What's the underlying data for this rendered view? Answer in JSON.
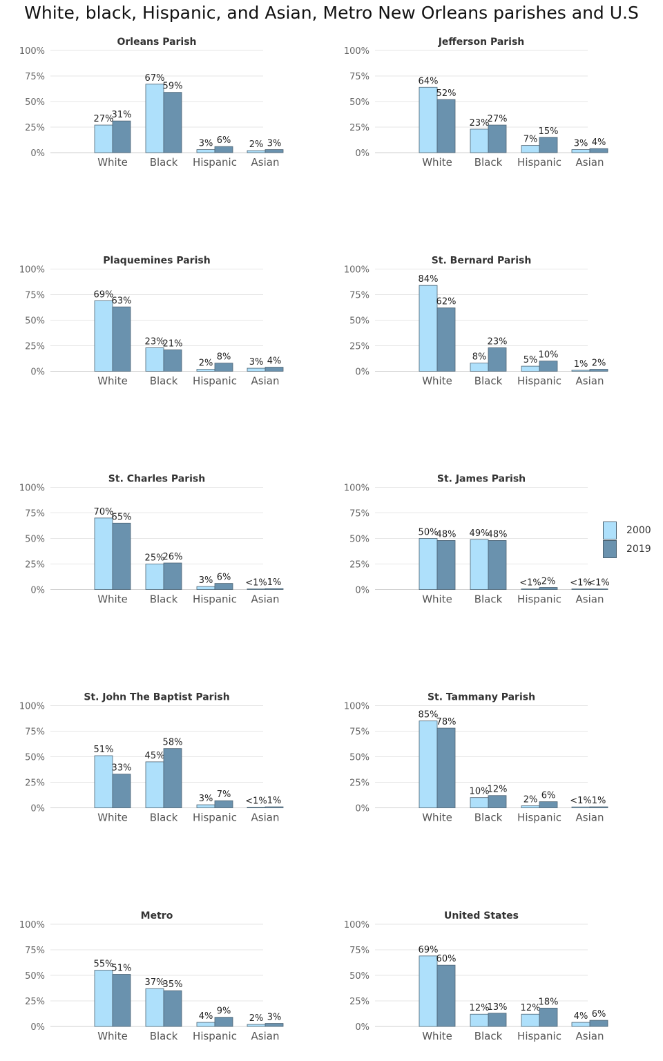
{
  "title": "White, black, Hispanic, and Asian, Metro New Orleans parishes and U.S",
  "legend": [
    {
      "label": "2000",
      "color": "#aee0fb"
    },
    {
      "label": "2019",
      "color": "#6a92ae"
    }
  ],
  "y_ticks": [
    "0%",
    "25%",
    "50%",
    "75%",
    "100%"
  ],
  "chart_data": [
    {
      "type": "bar",
      "title": "Orleans Parish",
      "categories": [
        "White",
        "Black",
        "Hispanic",
        "Asian"
      ],
      "ylim": [
        0,
        100
      ],
      "series": [
        {
          "name": "2000",
          "values": [
            27,
            67,
            3,
            2
          ],
          "labels": [
            "27%",
            "67%",
            "3%",
            "2%"
          ]
        },
        {
          "name": "2019",
          "values": [
            31,
            59,
            6,
            3
          ],
          "labels": [
            "31%",
            "59%",
            "6%",
            "3%"
          ]
        }
      ]
    },
    {
      "type": "bar",
      "title": "Jefferson Parish",
      "categories": [
        "White",
        "Black",
        "Hispanic",
        "Asian"
      ],
      "ylim": [
        0,
        100
      ],
      "series": [
        {
          "name": "2000",
          "values": [
            64,
            23,
            7,
            3
          ],
          "labels": [
            "64%",
            "23%",
            "7%",
            "3%"
          ]
        },
        {
          "name": "2019",
          "values": [
            52,
            27,
            15,
            4
          ],
          "labels": [
            "52%",
            "27%",
            "15%",
            "4%"
          ]
        }
      ]
    },
    {
      "type": "bar",
      "title": "Plaquemines Parish",
      "categories": [
        "White",
        "Black",
        "Hispanic",
        "Asian"
      ],
      "ylim": [
        0,
        100
      ],
      "series": [
        {
          "name": "2000",
          "values": [
            69,
            23,
            2,
            3
          ],
          "labels": [
            "69%",
            "23%",
            "2%",
            "3%"
          ]
        },
        {
          "name": "2019",
          "values": [
            63,
            21,
            8,
            4
          ],
          "labels": [
            "63%",
            "21%",
            "8%",
            "4%"
          ]
        }
      ]
    },
    {
      "type": "bar",
      "title": "St. Bernard Parish",
      "categories": [
        "White",
        "Black",
        "Hispanic",
        "Asian"
      ],
      "ylim": [
        0,
        100
      ],
      "series": [
        {
          "name": "2000",
          "values": [
            84,
            8,
            5,
            1
          ],
          "labels": [
            "84%",
            "8%",
            "5%",
            "1%"
          ]
        },
        {
          "name": "2019",
          "values": [
            62,
            23,
            10,
            2
          ],
          "labels": [
            "62%",
            "23%",
            "10%",
            "2%"
          ]
        }
      ]
    },
    {
      "type": "bar",
      "title": "St. Charles Parish",
      "categories": [
        "White",
        "Black",
        "Hispanic",
        "Asian"
      ],
      "ylim": [
        0,
        100
      ],
      "series": [
        {
          "name": "2000",
          "values": [
            70,
            25,
            3,
            0.4
          ],
          "labels": [
            "70%",
            "25%",
            "3%",
            "<1%"
          ]
        },
        {
          "name": "2019",
          "values": [
            65,
            26,
            6,
            1
          ],
          "labels": [
            "65%",
            "26%",
            "6%",
            "1%"
          ]
        }
      ]
    },
    {
      "type": "bar",
      "title": "St. James Parish",
      "categories": [
        "White",
        "Black",
        "Hispanic",
        "Asian"
      ],
      "ylim": [
        0,
        100
      ],
      "series": [
        {
          "name": "2000",
          "values": [
            50,
            49,
            0.4,
            0.2
          ],
          "labels": [
            "50%",
            "49%",
            "<1%",
            "<1%"
          ]
        },
        {
          "name": "2019",
          "values": [
            48,
            48,
            2,
            0.3
          ],
          "labels": [
            "48%",
            "48%",
            "2%",
            "<1%"
          ]
        }
      ]
    },
    {
      "type": "bar",
      "title": "St. John The Baptist Parish",
      "categories": [
        "White",
        "Black",
        "Hispanic",
        "Asian"
      ],
      "ylim": [
        0,
        100
      ],
      "series": [
        {
          "name": "2000",
          "values": [
            51,
            45,
            3,
            0.5
          ],
          "labels": [
            "51%",
            "45%",
            "3%",
            "<1%"
          ]
        },
        {
          "name": "2019",
          "values": [
            33,
            58,
            7,
            1
          ],
          "labels": [
            "33%",
            "58%",
            "7%",
            "1%"
          ]
        }
      ]
    },
    {
      "type": "bar",
      "title": "St. Tammany Parish",
      "categories": [
        "White",
        "Black",
        "Hispanic",
        "Asian"
      ],
      "ylim": [
        0,
        100
      ],
      "series": [
        {
          "name": "2000",
          "values": [
            85,
            10,
            2,
            0.9
          ],
          "labels": [
            "85%",
            "10%",
            "2%",
            "<1%"
          ]
        },
        {
          "name": "2019",
          "values": [
            78,
            12,
            6,
            1
          ],
          "labels": [
            "78%",
            "12%",
            "6%",
            "1%"
          ]
        }
      ]
    },
    {
      "type": "bar",
      "title": "Metro",
      "categories": [
        "White",
        "Black",
        "Hispanic",
        "Asian"
      ],
      "ylim": [
        0,
        100
      ],
      "series": [
        {
          "name": "2000",
          "values": [
            55,
            37,
            4,
            2
          ],
          "labels": [
            "55%",
            "37%",
            "4%",
            "2%"
          ]
        },
        {
          "name": "2019",
          "values": [
            51,
            35,
            9,
            3
          ],
          "labels": [
            "51%",
            "35%",
            "9%",
            "3%"
          ]
        }
      ]
    },
    {
      "type": "bar",
      "title": "United States",
      "categories": [
        "White",
        "Black",
        "Hispanic",
        "Asian"
      ],
      "ylim": [
        0,
        100
      ],
      "series": [
        {
          "name": "2000",
          "values": [
            69,
            12,
            12,
            4
          ],
          "labels": [
            "69%",
            "12%",
            "12%",
            "4%"
          ]
        },
        {
          "name": "2019",
          "values": [
            60,
            13,
            18,
            6
          ],
          "labels": [
            "60%",
            "13%",
            "18%",
            "6%"
          ]
        }
      ]
    }
  ]
}
